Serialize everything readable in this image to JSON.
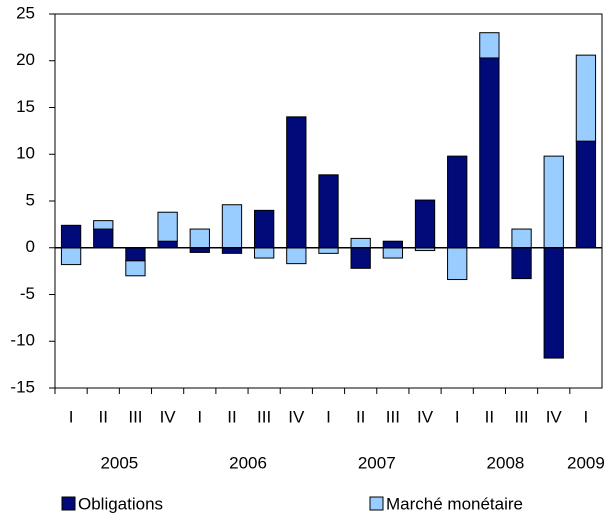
{
  "chart_data": {
    "type": "stacked_bar",
    "categories": [
      "I",
      "II",
      "III",
      "IV",
      "I",
      "II",
      "III",
      "IV",
      "I",
      "II",
      "III",
      "IV",
      "I",
      "II",
      "III",
      "IV",
      "I"
    ],
    "years": [
      "2005",
      "2006",
      "2007",
      "2008",
      "2009"
    ],
    "series": [
      {
        "name": "Obligations",
        "color": "#000a78",
        "values": [
          2.4,
          2.0,
          -1.4,
          0.7,
          -0.5,
          -0.6,
          4.0,
          14.0,
          7.8,
          -2.2,
          0.7,
          5.1,
          9.8,
          20.3,
          -3.3,
          -11.8,
          11.4
        ]
      },
      {
        "name": "Marché monétaire",
        "color": "#99ccff",
        "values": [
          -1.8,
          0.9,
          -1.6,
          3.1,
          2.0,
          4.6,
          -1.1,
          -1.7,
          -0.6,
          1.0,
          -1.1,
          -0.3,
          -3.4,
          2.7,
          2.0,
          9.8,
          9.2
        ]
      }
    ],
    "ylim": [
      -15,
      25
    ],
    "yticks": [
      -15,
      -10,
      -5,
      0,
      5,
      10,
      15,
      20,
      25
    ]
  }
}
